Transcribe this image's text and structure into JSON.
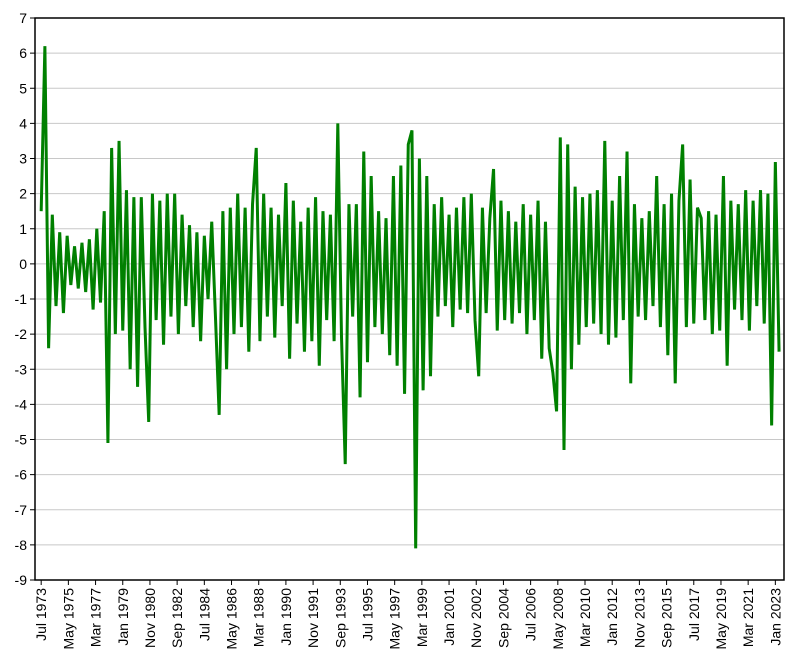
{
  "chart_data": {
    "type": "line",
    "color": "#008000",
    "grid": true,
    "xlim": [
      "1973-02",
      "2023-08"
    ],
    "ylim": [
      -9,
      7
    ],
    "yticks": [
      -9,
      -8,
      -7,
      -6,
      -5,
      -4,
      -3,
      -2,
      -1,
      0,
      1,
      2,
      3,
      4,
      5,
      6,
      7
    ],
    "xticks": [
      {
        "value": "1973-07",
        "label": "Jul 1973"
      },
      {
        "value": "1975-05",
        "label": "May 1975"
      },
      {
        "value": "1977-03",
        "label": "Mar 1977"
      },
      {
        "value": "1979-01",
        "label": "Jan 1979"
      },
      {
        "value": "1980-11",
        "label": "Nov 1980"
      },
      {
        "value": "1982-09",
        "label": "Sep 1982"
      },
      {
        "value": "1984-07",
        "label": "Jul 1984"
      },
      {
        "value": "1986-05",
        "label": "May 1986"
      },
      {
        "value": "1988-03",
        "label": "Mar 1988"
      },
      {
        "value": "1990-01",
        "label": "Jan 1990"
      },
      {
        "value": "1991-11",
        "label": "Nov 1991"
      },
      {
        "value": "1993-09",
        "label": "Sep 1993"
      },
      {
        "value": "1995-07",
        "label": "Jul 1995"
      },
      {
        "value": "1997-05",
        "label": "May 1997"
      },
      {
        "value": "1999-03",
        "label": "Mar 1999"
      },
      {
        "value": "2001-01",
        "label": "Jan 2001"
      },
      {
        "value": "2002-11",
        "label": "Nov 2002"
      },
      {
        "value": "2004-09",
        "label": "Sep 2004"
      },
      {
        "value": "2006-07",
        "label": "Jul 2006"
      },
      {
        "value": "2008-05",
        "label": "May 2008"
      },
      {
        "value": "2010-03",
        "label": "Mar 2010"
      },
      {
        "value": "2012-01",
        "label": "Jan 2012"
      },
      {
        "value": "2013-11",
        "label": "Nov 2013"
      },
      {
        "value": "2015-09",
        "label": "Sep 2015"
      },
      {
        "value": "2017-07",
        "label": "Jul 2017"
      },
      {
        "value": "2019-05",
        "label": "May 2019"
      },
      {
        "value": "2021-03",
        "label": "Mar 2021"
      },
      {
        "value": "2023-01",
        "label": "Jan 2023"
      }
    ],
    "x": [
      "1973-07",
      "1973-10",
      "1974-01",
      "1974-04",
      "1974-07",
      "1974-10",
      "1975-01",
      "1975-04",
      "1975-07",
      "1975-10",
      "1976-01",
      "1976-04",
      "1976-07",
      "1976-10",
      "1977-01",
      "1977-04",
      "1977-07",
      "1977-10",
      "1978-01",
      "1978-04",
      "1978-07",
      "1978-10",
      "1979-01",
      "1979-04",
      "1979-07",
      "1979-10",
      "1980-01",
      "1980-04",
      "1980-07",
      "1980-10",
      "1981-01",
      "1981-04",
      "1981-07",
      "1981-10",
      "1982-01",
      "1982-04",
      "1982-07",
      "1982-10",
      "1983-01",
      "1983-04",
      "1983-07",
      "1983-10",
      "1984-01",
      "1984-04",
      "1984-07",
      "1984-10",
      "1985-01",
      "1985-04",
      "1985-07",
      "1985-10",
      "1986-01",
      "1986-04",
      "1986-07",
      "1986-10",
      "1987-01",
      "1987-04",
      "1987-07",
      "1987-10",
      "1988-01",
      "1988-04",
      "1988-07",
      "1988-10",
      "1989-01",
      "1989-04",
      "1989-07",
      "1989-10",
      "1990-01",
      "1990-04",
      "1990-07",
      "1990-10",
      "1991-01",
      "1991-04",
      "1991-07",
      "1991-10",
      "1992-01",
      "1992-04",
      "1992-07",
      "1992-10",
      "1993-01",
      "1993-04",
      "1993-07",
      "1993-10",
      "1994-01",
      "1994-04",
      "1994-07",
      "1994-10",
      "1995-01",
      "1995-04",
      "1995-07",
      "1995-10",
      "1996-01",
      "1996-04",
      "1996-07",
      "1996-10",
      "1997-01",
      "1997-04",
      "1997-07",
      "1997-10",
      "1998-01",
      "1998-04",
      "1998-07",
      "1998-10",
      "1999-01",
      "1999-04",
      "1999-07",
      "1999-10",
      "2000-01",
      "2000-04",
      "2000-07",
      "2000-10",
      "2001-01",
      "2001-04",
      "2001-07",
      "2001-10",
      "2002-01",
      "2002-04",
      "2002-07",
      "2002-10",
      "2003-01",
      "2003-04",
      "2003-07",
      "2003-10",
      "2004-01",
      "2004-04",
      "2004-07",
      "2004-10",
      "2005-01",
      "2005-04",
      "2005-07",
      "2005-10",
      "2006-01",
      "2006-04",
      "2006-07",
      "2006-10",
      "2007-01",
      "2007-04",
      "2007-07",
      "2007-10",
      "2008-01",
      "2008-04",
      "2008-07",
      "2008-10",
      "2009-01",
      "2009-04",
      "2009-07",
      "2009-10",
      "2010-01",
      "2010-04",
      "2010-07",
      "2010-10",
      "2011-01",
      "2011-04",
      "2011-07",
      "2011-10",
      "2012-01",
      "2012-04",
      "2012-07",
      "2012-10",
      "2013-01",
      "2013-04",
      "2013-07",
      "2013-10",
      "2014-01",
      "2014-04",
      "2014-07",
      "2014-10",
      "2015-01",
      "2015-04",
      "2015-07",
      "2015-10",
      "2016-01",
      "2016-04",
      "2016-07",
      "2016-10",
      "2017-01",
      "2017-04",
      "2017-07",
      "2017-10",
      "2018-01",
      "2018-04",
      "2018-07",
      "2018-10",
      "2019-01",
      "2019-04",
      "2019-07",
      "2019-10",
      "2020-01",
      "2020-04",
      "2020-07",
      "2020-10",
      "2021-01",
      "2021-04",
      "2021-07",
      "2021-10",
      "2022-01",
      "2022-04",
      "2022-07",
      "2022-10",
      "2023-01",
      "2023-04"
    ],
    "values": [
      1.5,
      6.2,
      -2.4,
      1.4,
      -1.2,
      0.9,
      -1.4,
      0.8,
      -0.6,
      0.5,
      -0.7,
      0.6,
      -0.8,
      0.7,
      -1.3,
      1.0,
      -1.1,
      1.5,
      -5.1,
      3.3,
      -2.0,
      3.5,
      -1.9,
      2.1,
      -3.0,
      1.9,
      -3.5,
      1.9,
      -1.8,
      -4.5,
      2.0,
      -1.6,
      1.8,
      -2.3,
      2.0,
      -1.5,
      2.0,
      -2.0,
      1.4,
      -1.2,
      1.1,
      -1.8,
      0.9,
      -2.2,
      0.8,
      -1.0,
      1.2,
      -1.5,
      -4.3,
      1.5,
      -3.0,
      1.6,
      -2.0,
      2.0,
      -1.8,
      1.6,
      -2.5,
      1.7,
      3.3,
      -2.2,
      2.0,
      -1.5,
      1.6,
      -2.1,
      1.4,
      -1.2,
      2.3,
      -2.7,
      1.8,
      -1.7,
      1.2,
      -2.5,
      1.6,
      -2.2,
      1.9,
      -2.9,
      1.5,
      -1.6,
      1.4,
      -2.2,
      4.0,
      -2.1,
      -5.7,
      1.7,
      -1.5,
      1.7,
      -3.8,
      3.2,
      -2.8,
      2.5,
      -1.8,
      1.5,
      -2.0,
      1.3,
      -2.6,
      2.5,
      -2.9,
      2.8,
      -3.7,
      3.4,
      3.8,
      -8.1,
      3.0,
      -3.6,
      2.5,
      -3.2,
      1.7,
      -1.5,
      1.9,
      -1.2,
      1.4,
      -1.8,
      1.6,
      -1.3,
      1.9,
      -1.4,
      2.0,
      -1.6,
      -3.2,
      1.6,
      -1.4,
      1.3,
      2.7,
      -1.9,
      1.8,
      -1.6,
      1.5,
      -1.7,
      1.2,
      -1.4,
      1.7,
      -2.0,
      1.4,
      -1.6,
      1.8,
      -2.7,
      1.2,
      -2.4,
      -3.1,
      -4.2,
      3.6,
      -5.3,
      3.4,
      -3.0,
      2.2,
      -2.3,
      1.9,
      -1.8,
      2.0,
      -1.7,
      2.1,
      -2.0,
      3.5,
      -2.3,
      1.8,
      -2.1,
      2.5,
      -1.6,
      3.2,
      -3.4,
      1.7,
      -1.5,
      1.3,
      -1.6,
      1.5,
      -1.2,
      2.5,
      -1.8,
      1.7,
      -2.6,
      2.0,
      -3.4,
      1.8,
      3.4,
      -1.8,
      2.4,
      -1.7,
      1.6,
      1.3,
      -1.6,
      1.5,
      -2.0,
      1.4,
      -1.9,
      2.5,
      -2.9,
      1.8,
      -1.3,
      1.7,
      -1.6,
      2.1,
      -1.9,
      1.8,
      -1.2,
      2.1,
      -1.7,
      2.0,
      -4.6,
      2.9,
      -2.5
    ]
  }
}
